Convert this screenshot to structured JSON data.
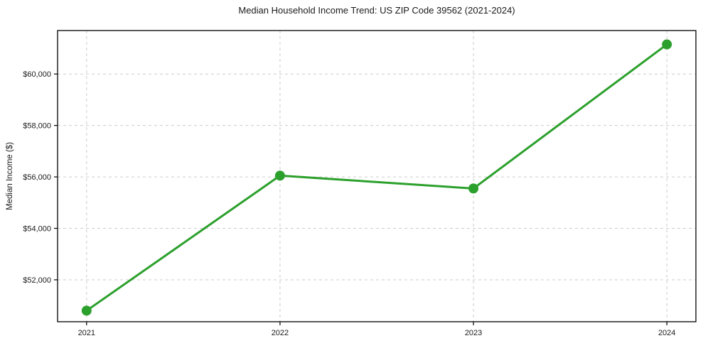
{
  "chart_data": {
    "type": "line",
    "title": "Median Household Income Trend: US ZIP Code 39562 (2021-2024)",
    "xlabel": "",
    "ylabel": "Median Income ($)",
    "x": [
      2021,
      2022,
      2023,
      2024
    ],
    "x_tick_labels": [
      "2021",
      "2022",
      "2023",
      "2024"
    ],
    "series": [
      {
        "name": "Median Household Income",
        "values": [
          50800,
          56050,
          55550,
          61150
        ]
      }
    ],
    "y_ticks": [
      52000,
      54000,
      56000,
      58000,
      60000
    ],
    "y_tick_labels": [
      "$52,000",
      "$54,000",
      "$56,000",
      "$58,000",
      "$60,000"
    ],
    "xlim": [
      2020.85,
      2024.15
    ],
    "ylim": [
      50370,
      61690
    ],
    "grid": true,
    "grid_style": "dashed",
    "legend_position": "none",
    "colors": {
      "line": "#2ca02c",
      "marker": "#2ca02c",
      "grid": "#cccccc",
      "spine": "#000000",
      "background": "#ffffff"
    }
  }
}
